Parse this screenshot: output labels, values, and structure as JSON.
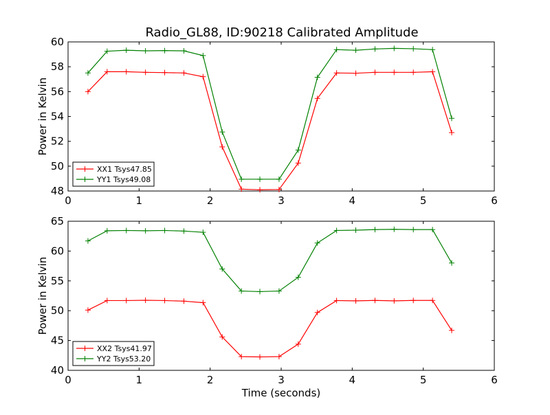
{
  "figure": {
    "title": "Radio_GL88, ID:90218 Calibrated Amplitude"
  },
  "chart_data": [
    {
      "type": "line",
      "title": "Radio_GL88, ID:90218 Calibrated Amplitude",
      "xlabel": "",
      "ylabel": "Power in Kelvin",
      "xlim": [
        0,
        6
      ],
      "ylim": [
        48,
        60
      ],
      "xticks": [
        0,
        1,
        2,
        3,
        4,
        5,
        6
      ],
      "yticks": [
        48,
        50,
        52,
        54,
        56,
        58,
        60
      ],
      "grid": false,
      "legend": "lower-left",
      "x": [
        0.28,
        0.55,
        0.82,
        1.09,
        1.36,
        1.63,
        1.9,
        2.17,
        2.44,
        2.7,
        2.97,
        3.24,
        3.51,
        3.78,
        4.05,
        4.32,
        4.59,
        4.86,
        5.13,
        5.4
      ],
      "series": [
        {
          "name": "XX1 Tsys47.85",
          "color": "#ff0000",
          "values": [
            56.0,
            57.6,
            57.6,
            57.55,
            57.53,
            57.5,
            57.2,
            51.55,
            48.15,
            48.1,
            48.12,
            50.25,
            55.45,
            57.5,
            57.48,
            57.55,
            57.55,
            57.55,
            57.6,
            52.7
          ]
        },
        {
          "name": "YY1 Tsys49.08",
          "color": "#008000",
          "values": [
            57.5,
            59.25,
            59.33,
            59.28,
            59.3,
            59.28,
            58.9,
            52.75,
            48.95,
            48.95,
            48.95,
            51.3,
            57.15,
            59.38,
            59.33,
            59.43,
            59.48,
            59.45,
            59.38,
            53.85
          ]
        }
      ]
    },
    {
      "type": "line",
      "title": "",
      "xlabel": "Time (seconds)",
      "ylabel": "Power in Kelvin",
      "xlim": [
        0,
        6
      ],
      "ylim": [
        40,
        65
      ],
      "xticks": [
        0,
        1,
        2,
        3,
        4,
        5,
        6
      ],
      "yticks": [
        40,
        45,
        50,
        55,
        60,
        65
      ],
      "grid": false,
      "legend": "lower-left",
      "x": [
        0.28,
        0.55,
        0.82,
        1.09,
        1.36,
        1.63,
        1.9,
        2.17,
        2.44,
        2.7,
        2.97,
        3.24,
        3.51,
        3.78,
        4.05,
        4.32,
        4.59,
        4.86,
        5.13,
        5.4
      ],
      "series": [
        {
          "name": "XX2 Tsys41.97",
          "color": "#ff0000",
          "values": [
            50.1,
            51.7,
            51.7,
            51.75,
            51.7,
            51.6,
            51.35,
            45.6,
            42.3,
            42.25,
            42.3,
            44.4,
            49.7,
            51.7,
            51.65,
            51.72,
            51.65,
            51.72,
            51.72,
            46.7
          ]
        },
        {
          "name": "YY2 Tsys53.20",
          "color": "#008000",
          "values": [
            61.7,
            63.4,
            63.45,
            63.4,
            63.45,
            63.35,
            63.15,
            57.0,
            53.3,
            53.2,
            53.3,
            55.6,
            61.35,
            63.45,
            63.5,
            63.6,
            63.65,
            63.6,
            63.6,
            58.0
          ]
        }
      ]
    }
  ]
}
